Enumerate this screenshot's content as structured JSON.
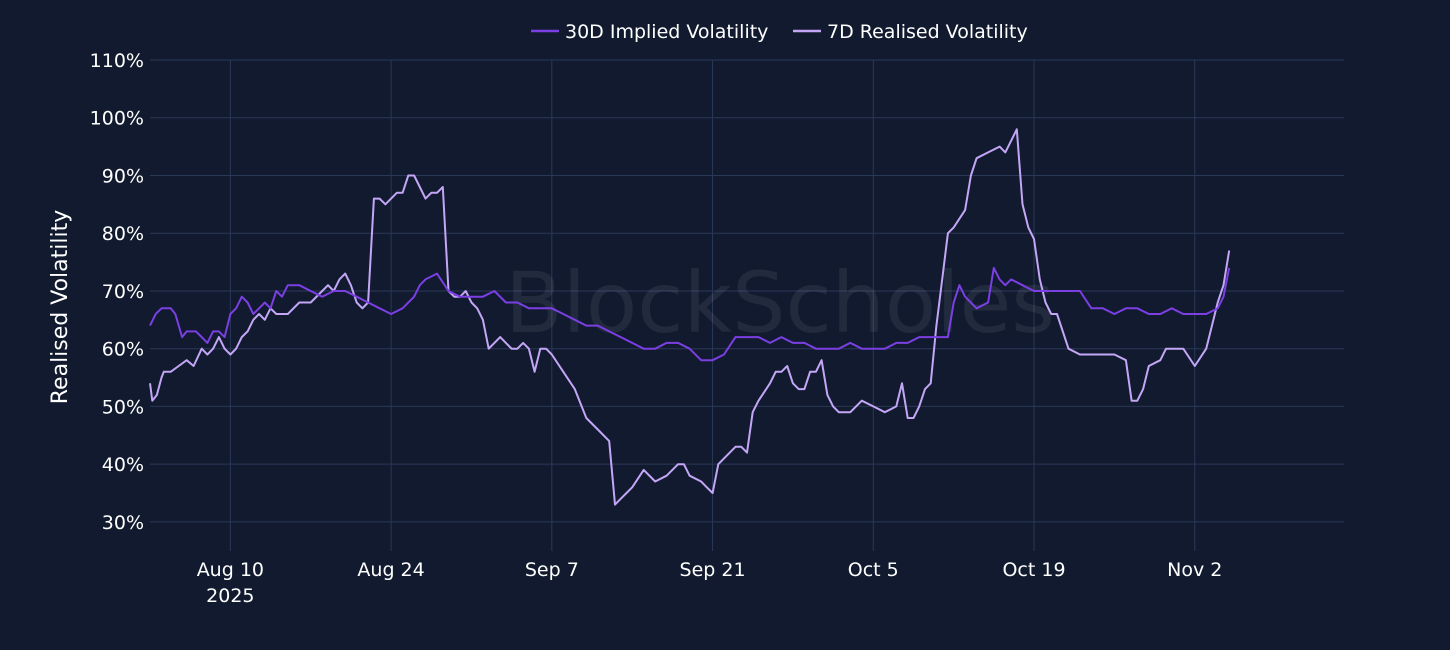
{
  "chart_data": {
    "type": "line",
    "title": "",
    "xlabel": "",
    "ylabel": "Realised Volatility",
    "ylim": [
      26,
      110
    ],
    "y_ticks": [
      30,
      40,
      50,
      60,
      70,
      80,
      90,
      100,
      110
    ],
    "y_tick_labels": [
      "30%",
      "40%",
      "50%",
      "60%",
      "70%",
      "80%",
      "90%",
      "100%",
      "110%"
    ],
    "x_range_days": [
      -7,
      97
    ],
    "x_ticks": [
      {
        "day": 0,
        "label": "Aug 10",
        "sublabel": "2025"
      },
      {
        "day": 14,
        "label": "Aug 24",
        "sublabel": ""
      },
      {
        "day": 28,
        "label": "Sep 7",
        "sublabel": ""
      },
      {
        "day": 42,
        "label": "Sep 21",
        "sublabel": ""
      },
      {
        "day": 56,
        "label": "Oct 5",
        "sublabel": ""
      },
      {
        "day": 70,
        "label": "Oct 19",
        "sublabel": ""
      },
      {
        "day": 84,
        "label": "Nov 2",
        "sublabel": ""
      }
    ],
    "x_unit_note": "x values are days relative to Aug 10 2025",
    "grid": true,
    "legend_position": "top-center",
    "watermark": "BlockScholes",
    "series": [
      {
        "name": "30D Implied Volatility",
        "color": "#7b3fe4",
        "x": [
          -7,
          -6.5,
          -6,
          -5.2,
          -4.8,
          -4.2,
          -3.8,
          -3,
          -2.5,
          -2,
          -1.5,
          -1,
          -0.5,
          0,
          0.5,
          1,
          1.5,
          2,
          2.5,
          3,
          3.5,
          4,
          4.5,
          5,
          6,
          7,
          8,
          9,
          10,
          11,
          12,
          13,
          14,
          15,
          16,
          16.5,
          17,
          18,
          19,
          20,
          21,
          22,
          23,
          24,
          25,
          26,
          27,
          28,
          29,
          30,
          31,
          32,
          33,
          34,
          35,
          36,
          37,
          38,
          39,
          40,
          41,
          42,
          43,
          44,
          45,
          46,
          47,
          48,
          49,
          50,
          51,
          52,
          53,
          54,
          55,
          56,
          57,
          58,
          59,
          60,
          61,
          62,
          62.5,
          63,
          63.5,
          64,
          65,
          66,
          66.5,
          67,
          67.5,
          68,
          69,
          70,
          71,
          72,
          73,
          74,
          75,
          76,
          77,
          78,
          79,
          80,
          81,
          82,
          83,
          84,
          85,
          86,
          86.5,
          87
        ],
        "values": [
          64,
          66,
          67,
          67,
          66,
          62,
          63,
          63,
          62,
          61,
          63,
          63,
          62,
          66,
          67,
          69,
          68,
          66,
          67,
          68,
          67,
          70,
          69,
          71,
          71,
          70,
          69,
          70,
          70,
          69,
          68,
          67,
          66,
          67,
          69,
          71,
          72,
          73,
          70,
          69,
          69,
          69,
          70,
          68,
          68,
          67,
          67,
          67,
          66,
          65,
          64,
          64,
          63,
          62,
          61,
          60,
          60,
          61,
          61,
          60,
          58,
          58,
          59,
          62,
          62,
          62,
          61,
          62,
          61,
          61,
          60,
          60,
          60,
          61,
          60,
          60,
          60,
          61,
          61,
          62,
          62,
          62,
          62,
          68,
          71,
          69,
          67,
          68,
          74,
          72,
          71,
          72,
          71,
          70,
          70,
          70,
          70,
          70,
          67,
          67,
          66,
          67,
          67,
          66,
          66,
          67,
          66,
          66,
          66,
          67,
          69,
          74
        ]
      },
      {
        "name": "7D Realised Volatility",
        "color": "#c4a6f7",
        "x": [
          -7,
          -6.8,
          -6.4,
          -6,
          -5.8,
          -5.2,
          -4.5,
          -3.8,
          -3.2,
          -2.5,
          -2,
          -1.5,
          -1,
          -0.5,
          0,
          0.5,
          1,
          1.5,
          2,
          2.5,
          3,
          3.5,
          4,
          5,
          6,
          7,
          8,
          8.5,
          9,
          9.5,
          10,
          10.5,
          11,
          11.5,
          12,
          12.5,
          13,
          13.5,
          14,
          14.5,
          15,
          15.5,
          16,
          16.5,
          17,
          17.5,
          18,
          18.5,
          19,
          19.5,
          20,
          20.5,
          21,
          21.5,
          22,
          22.5,
          23,
          23.5,
          24,
          24.5,
          25,
          25.5,
          26,
          26.5,
          27,
          27.5,
          28,
          29,
          30,
          31,
          32,
          33,
          33.5,
          34,
          34.5,
          35,
          36,
          37,
          38,
          39,
          39.5,
          40,
          41,
          41.5,
          42,
          42.5,
          43,
          44,
          44.5,
          45,
          45.5,
          46,
          47,
          47.5,
          48,
          48.5,
          49,
          49.5,
          50,
          50.5,
          51,
          51.5,
          52,
          52.5,
          53,
          54,
          55,
          56,
          57,
          58,
          58.5,
          59,
          59.5,
          60,
          60.5,
          61,
          61.5,
          62,
          62.5,
          63,
          64,
          64.5,
          65,
          66,
          67,
          67.5,
          68,
          68.5,
          69,
          69.5,
          70,
          70.5,
          71,
          71.5,
          72,
          73,
          74,
          75,
          76,
          77,
          78,
          78.5,
          79,
          79.5,
          80,
          81,
          81.5,
          82,
          83,
          84,
          85,
          86,
          86.5,
          87
        ],
        "values": [
          54,
          51,
          52,
          55,
          56,
          56,
          57,
          58,
          57,
          60,
          59,
          60,
          62,
          60,
          59,
          60,
          62,
          63,
          65,
          66,
          65,
          67,
          66,
          66,
          68,
          68,
          70,
          71,
          70,
          72,
          73,
          71,
          68,
          67,
          68,
          86,
          86,
          85,
          86,
          87,
          87,
          90,
          90,
          88,
          86,
          87,
          87,
          88,
          70,
          69,
          69,
          70,
          68,
          67,
          65,
          60,
          61,
          62,
          61,
          60,
          60,
          61,
          60,
          56,
          60,
          60,
          59,
          56,
          53,
          48,
          46,
          44,
          33,
          34,
          35,
          36,
          39,
          37,
          38,
          40,
          40,
          38,
          37,
          36,
          35,
          40,
          41,
          43,
          43,
          42,
          49,
          51,
          54,
          56,
          56,
          57,
          54,
          53,
          53,
          56,
          56,
          58,
          52,
          50,
          49,
          49,
          51,
          50,
          49,
          50,
          54,
          48,
          48,
          50,
          53,
          54,
          64,
          72,
          80,
          81,
          84,
          90,
          93,
          94,
          95,
          94,
          96,
          98,
          85,
          81,
          79,
          72,
          68,
          66,
          66,
          60,
          59,
          59,
          59,
          59,
          58,
          51,
          51,
          53,
          57,
          58,
          60,
          60,
          60,
          57,
          60,
          68,
          71,
          77
        ]
      }
    ]
  }
}
